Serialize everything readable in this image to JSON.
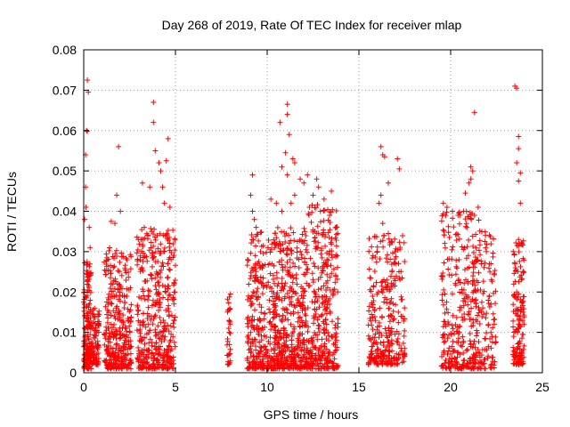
{
  "chart_data": {
    "type": "scatter",
    "title": "Day 268 of 2019, Rate Of TEC Index for receiver mlap",
    "xlabel": "GPS time / hours",
    "ylabel": "ROTI / TECUs",
    "xlim": [
      0,
      25
    ],
    "ylim": [
      0,
      0.08
    ],
    "xticks": [
      0,
      5,
      10,
      15,
      20,
      25
    ],
    "yticks": [
      0,
      0.01,
      0.02,
      0.03,
      0.04,
      0.05,
      0.06,
      0.07,
      0.08
    ],
    "xtick_labels": [
      "0",
      "5",
      "10",
      "15",
      "20",
      "25"
    ],
    "ytick_labels": [
      "0",
      "0.01",
      "0.02",
      "0.03",
      "0.04",
      "0.05",
      "0.06",
      "0.07",
      "0.08"
    ],
    "grid": true,
    "marker": "+",
    "color": "#ff0000",
    "series": [
      {
        "name": "ROTI",
        "clusters": [
          {
            "x": [
              0.0,
              0.4
            ],
            "y": [
              0.001,
              0.028
            ],
            "n": 160
          },
          {
            "x": [
              0.4,
              0.85
            ],
            "y": [
              0.002,
              0.016
            ],
            "n": 90
          },
          {
            "x": [
              1.1,
              2.6
            ],
            "y": [
              0.001,
              0.031
            ],
            "n": 320
          },
          {
            "x": [
              2.9,
              5.0
            ],
            "y": [
              0.001,
              0.036
            ],
            "n": 420
          },
          {
            "x": [
              7.8,
              8.0
            ],
            "y": [
              0.002,
              0.019
            ],
            "n": 30
          },
          {
            "x": [
              8.9,
              10.5
            ],
            "y": [
              0.001,
              0.035
            ],
            "n": 330
          },
          {
            "x": [
              10.5,
              12.2
            ],
            "y": [
              0.001,
              0.036
            ],
            "n": 380
          },
          {
            "x": [
              12.2,
              13.9
            ],
            "y": [
              0.001,
              0.042
            ],
            "n": 340
          },
          {
            "x": [
              15.5,
              17.5
            ],
            "y": [
              0.002,
              0.034
            ],
            "n": 300
          },
          {
            "x": [
              19.5,
              21.6
            ],
            "y": [
              0.001,
              0.04
            ],
            "n": 330
          },
          {
            "x": [
              21.6,
              22.5
            ],
            "y": [
              0.001,
              0.035
            ],
            "n": 90
          },
          {
            "x": [
              23.4,
              24.0
            ],
            "y": [
              0.002,
              0.033
            ],
            "n": 150
          }
        ],
        "points": [
          [
            0.1,
            0.054
          ],
          [
            0.2,
            0.0725
          ],
          [
            0.25,
            0.0695
          ],
          [
            0.15,
            0.06
          ],
          [
            0.2,
            0.0598
          ],
          [
            0.1,
            0.046
          ],
          [
            0.12,
            0.041
          ],
          [
            0.3,
            0.036
          ],
          [
            0.35,
            0.031
          ],
          [
            0.05,
            0.038
          ],
          [
            1.9,
            0.056
          ],
          [
            1.8,
            0.044
          ],
          [
            2.0,
            0.04
          ],
          [
            1.7,
            0.037
          ],
          [
            1.5,
            0.0375
          ],
          [
            3.8,
            0.067
          ],
          [
            3.8,
            0.062
          ],
          [
            3.9,
            0.055
          ],
          [
            4.1,
            0.052
          ],
          [
            4.2,
            0.05
          ],
          [
            4.6,
            0.058
          ],
          [
            4.5,
            0.0525
          ],
          [
            4.3,
            0.046
          ],
          [
            3.2,
            0.047
          ],
          [
            3.6,
            0.046
          ],
          [
            4.4,
            0.042
          ],
          [
            3.3,
            0.036
          ],
          [
            3.7,
            0.035
          ],
          [
            4.0,
            0.034
          ],
          [
            4.7,
            0.041
          ],
          [
            9.2,
            0.049
          ],
          [
            9.1,
            0.044
          ],
          [
            9.2,
            0.04
          ],
          [
            9.3,
            0.038
          ],
          [
            9.4,
            0.036
          ],
          [
            10.7,
            0.062
          ],
          [
            11.1,
            0.0665
          ],
          [
            11.1,
            0.064
          ],
          [
            11.2,
            0.059
          ],
          [
            11.0,
            0.0545
          ],
          [
            11.1,
            0.049
          ],
          [
            10.8,
            0.051
          ],
          [
            11.4,
            0.053
          ],
          [
            11.5,
            0.052
          ],
          [
            11.8,
            0.048
          ],
          [
            11.5,
            0.044
          ],
          [
            10.2,
            0.043
          ],
          [
            10.5,
            0.042
          ],
          [
            10.8,
            0.04
          ],
          [
            11.3,
            0.042
          ],
          [
            12.2,
            0.049
          ],
          [
            12.7,
            0.048
          ],
          [
            12.8,
            0.046
          ],
          [
            13.5,
            0.045
          ],
          [
            12.5,
            0.044
          ],
          [
            13.1,
            0.043
          ],
          [
            12.0,
            0.047
          ],
          [
            12.3,
            0.041
          ],
          [
            12.9,
            0.04
          ],
          [
            13.4,
            0.039
          ],
          [
            16.2,
            0.056
          ],
          [
            16.3,
            0.054
          ],
          [
            16.4,
            0.0535
          ],
          [
            17.1,
            0.053
          ],
          [
            17.2,
            0.0505
          ],
          [
            16.2,
            0.044
          ],
          [
            16.1,
            0.042
          ],
          [
            16.6,
            0.047
          ],
          [
            16.3,
            0.037
          ],
          [
            16.6,
            0.0345
          ],
          [
            15.8,
            0.0215
          ],
          [
            16.0,
            0.03
          ],
          [
            17.0,
            0.027
          ],
          [
            16.8,
            0.025
          ],
          [
            17.3,
            0.014
          ],
          [
            19.6,
            0.042
          ],
          [
            19.8,
            0.041
          ],
          [
            20.1,
            0.04
          ],
          [
            20.4,
            0.039
          ],
          [
            20.7,
            0.04
          ],
          [
            20.8,
            0.0445
          ],
          [
            21.0,
            0.047
          ],
          [
            21.1,
            0.048
          ],
          [
            21.1,
            0.051
          ],
          [
            21.2,
            0.05
          ],
          [
            21.3,
            0.0645
          ],
          [
            21.5,
            0.041
          ],
          [
            21.7,
            0.035
          ],
          [
            21.9,
            0.034
          ],
          [
            21.3,
            0.039
          ],
          [
            23.5,
            0.071
          ],
          [
            23.6,
            0.0705
          ],
          [
            23.7,
            0.0585
          ],
          [
            23.7,
            0.0555
          ],
          [
            23.6,
            0.052
          ],
          [
            23.8,
            0.0495
          ],
          [
            23.7,
            0.0475
          ],
          [
            23.8,
            0.042
          ],
          [
            23.7,
            0.033
          ],
          [
            23.9,
            0.032
          ],
          [
            22.1,
            0.019
          ],
          [
            22.2,
            0.017
          ],
          [
            21.8,
            0.0145
          ],
          [
            8.0,
            0.0195
          ],
          [
            7.9,
            0.011
          ]
        ]
      }
    ]
  }
}
